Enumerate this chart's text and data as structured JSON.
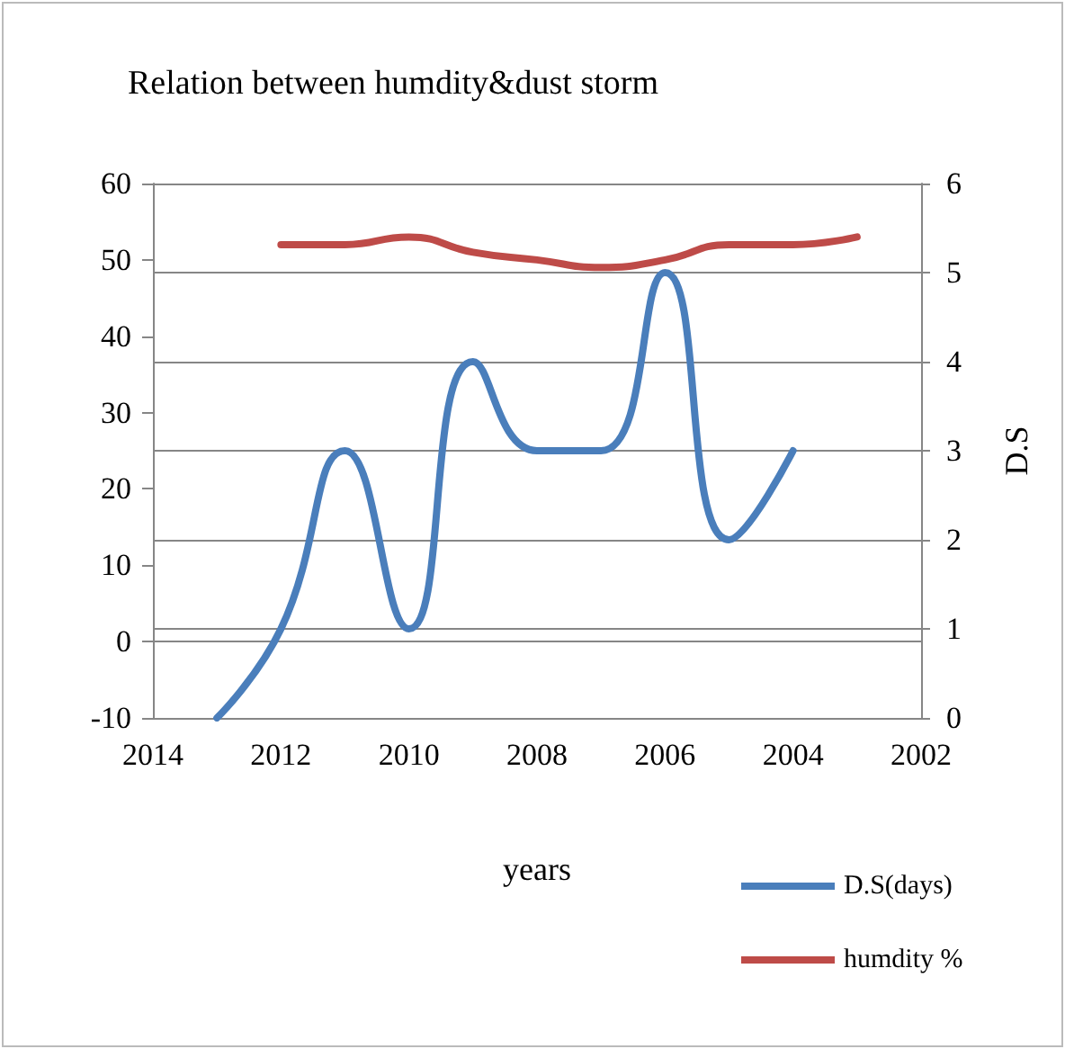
{
  "chart_data": {
    "type": "line",
    "title": "Relation between humdity&dust storm",
    "xlabel": "years",
    "y2label": "D.S",
    "xlim": [
      2014,
      2002
    ],
    "xticks": [
      2014,
      2012,
      2010,
      2008,
      2006,
      2004,
      2002
    ],
    "ylim": [
      -10,
      60
    ],
    "yticks": [
      -10,
      0,
      10,
      20,
      30,
      40,
      50,
      60
    ],
    "y2lim": [
      0,
      6
    ],
    "y2ticks": [
      0,
      1,
      2,
      3,
      4,
      5,
      6
    ],
    "grid": "y2",
    "legend": "bottom right",
    "marker": "none",
    "line_style": "solid",
    "series": [
      {
        "name": "D.S(days)",
        "color": "#4a7ebb",
        "axis": "y2",
        "x": [
          2013,
          2012,
          2011,
          2010,
          2009,
          2008,
          2007,
          2006,
          2005,
          2004
        ],
        "values": [
          0,
          1,
          3,
          1,
          4,
          3,
          3,
          5,
          2,
          3
        ]
      },
      {
        "name": "humdity %",
        "color": "#be4b48",
        "x": [
          2012,
          2011,
          2010,
          2009,
          2008,
          2007,
          2006,
          2005,
          2004,
          2003
        ],
        "values": [
          52,
          52,
          53,
          51,
          50,
          49,
          50,
          52,
          52,
          53
        ]
      }
    ]
  }
}
